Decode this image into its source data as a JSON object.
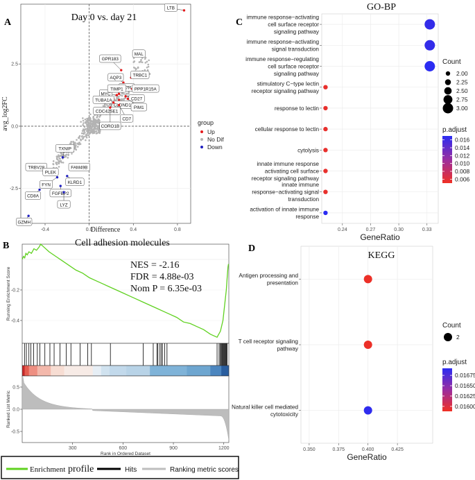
{
  "chart_data": [
    {
      "id": "A",
      "type": "scatter",
      "panel_label": "A",
      "title": "Day 0 vs. day 21",
      "xlabel": "Difference",
      "ylabel": "avg_log2FC",
      "xlim": [
        -0.62,
        0.92
      ],
      "ylim": [
        -3.9,
        4.9
      ],
      "x_ticks": [
        -0.4,
        0.0,
        0.4,
        0.8
      ],
      "x_tick_labels": [
        "-0.4",
        "0.0",
        "0.4",
        "0.8"
      ],
      "y_ticks": [
        -2.5,
        0.0,
        2.5
      ],
      "y_tick_labels": [
        "-2.5",
        "0.0",
        "2.5"
      ],
      "legend": {
        "title": "group",
        "entries": [
          {
            "label": "Up",
            "color": "#e41a1c"
          },
          {
            "label": "No Dif",
            "color": "#b3b3b3"
          },
          {
            "label": "Down",
            "color": "#1f1fbf"
          }
        ]
      },
      "labeled_points": [
        {
          "gene": "LTB",
          "x": 0.86,
          "y": 4.65,
          "group": "Up"
        },
        {
          "gene": "MAL",
          "x": 0.43,
          "y": 2.9,
          "group": "Up"
        },
        {
          "gene": "GPR183",
          "x": 0.29,
          "y": 2.25,
          "group": "Up"
        },
        {
          "gene": "AQP3",
          "x": 0.31,
          "y": 1.75,
          "group": "Up"
        },
        {
          "gene": "TRBC1",
          "x": 0.38,
          "y": 1.95,
          "group": "Up"
        },
        {
          "gene": "IL7R",
          "x": 0.34,
          "y": 1.6,
          "group": "Up"
        },
        {
          "gene": "PPP1R15A",
          "x": 0.39,
          "y": 1.5,
          "group": "Up"
        },
        {
          "gene": "MYC",
          "x": 0.25,
          "y": 1.25,
          "group": "Up"
        },
        {
          "gene": "TIMP1",
          "x": 0.27,
          "y": 1.3,
          "group": "Up"
        },
        {
          "gene": "CD27",
          "x": 0.33,
          "y": 1.2,
          "group": "Up"
        },
        {
          "gene": "TUBA1A",
          "x": 0.22,
          "y": 1.1,
          "group": "Up"
        },
        {
          "gene": "CLDND1",
          "x": 0.27,
          "y": 1.05,
          "group": "Up"
        },
        {
          "gene": "PIM1",
          "x": 0.35,
          "y": 1.1,
          "group": "Up"
        },
        {
          "gene": "CDC42SE1",
          "x": 0.22,
          "y": 0.95,
          "group": "Up"
        },
        {
          "gene": "CD7",
          "x": 0.27,
          "y": 0.85,
          "group": "Up"
        },
        {
          "gene": "CORO1B",
          "x": 0.19,
          "y": 0.75,
          "group": "Up"
        },
        {
          "gene": "TXNIP",
          "x": -0.24,
          "y": -1.25,
          "group": "Down"
        },
        {
          "gene": "TRBV28",
          "x": -0.34,
          "y": -1.75,
          "group": "Down"
        },
        {
          "gene": "PLEK",
          "x": -0.32,
          "y": -1.8,
          "group": "Down"
        },
        {
          "gene": "FAM49B",
          "x": -0.16,
          "y": -1.7,
          "group": "Down"
        },
        {
          "gene": "FYN",
          "x": -0.29,
          "y": -2.05,
          "group": "Down"
        },
        {
          "gene": "KLRD1",
          "x": -0.2,
          "y": -2.0,
          "group": "Down"
        },
        {
          "gene": "FGFBP2",
          "x": -0.26,
          "y": -2.4,
          "group": "Down"
        },
        {
          "gene": "CD8A",
          "x": -0.45,
          "y": -2.55,
          "group": "Down"
        },
        {
          "gene": "LYZ",
          "x": -0.23,
          "y": -2.65,
          "group": "Down"
        },
        {
          "gene": "GZMH",
          "x": -0.55,
          "y": -3.6,
          "group": "Down"
        }
      ]
    },
    {
      "id": "B",
      "type": "line",
      "panel_label": "B",
      "title": "Cell adhesion molecules",
      "ylabel": "Running Enrichment Score",
      "xlabel": "Rank in Ordered Dataset",
      "stats": [
        "NES = -2.16",
        "FDR = 4.88e-03",
        "Nom P = 6.35e-03"
      ],
      "y_ticks": [
        -0.2,
        -0.4
      ],
      "y_tick_labels": [
        "-0.2",
        "-0.4"
      ],
      "x_ticks": [
        300,
        600,
        900,
        1200
      ],
      "x_tick_labels": [
        "300",
        "600",
        "900",
        "1200"
      ],
      "xlim": [
        0,
        1230
      ],
      "ylim": [
        -0.55,
        0.1
      ],
      "running_score": {
        "x": [
          0,
          8,
          15,
          22,
          30,
          40,
          55,
          70,
          85,
          100,
          110,
          120,
          160,
          200,
          240,
          280,
          320,
          360,
          400,
          440,
          480,
          520,
          560,
          600,
          640,
          680,
          720,
          760,
          800,
          840,
          880,
          920,
          960,
          1000,
          1040,
          1080,
          1120,
          1160,
          1180,
          1195,
          1200,
          1205,
          1210,
          1215,
          1220,
          1225,
          1228
        ],
        "y": [
          0.0,
          0.02,
          0.01,
          0.04,
          0.03,
          0.05,
          0.04,
          0.07,
          0.06,
          0.08,
          0.1,
          0.09,
          0.05,
          0.02,
          -0.01,
          -0.04,
          -0.07,
          -0.09,
          -0.12,
          -0.14,
          -0.16,
          -0.18,
          -0.2,
          -0.22,
          -0.24,
          -0.26,
          -0.28,
          -0.3,
          -0.32,
          -0.34,
          -0.36,
          -0.38,
          -0.41,
          -0.42,
          -0.44,
          -0.46,
          -0.49,
          -0.51,
          -0.47,
          -0.4,
          -0.35,
          -0.3,
          -0.25,
          -0.2,
          -0.12,
          -0.05,
          -0.03
        ]
      },
      "hits": [
        15,
        25,
        40,
        52,
        68,
        90,
        105,
        135,
        165,
        190,
        225,
        262,
        290,
        345,
        390,
        412,
        525,
        720,
        780,
        802,
        808,
        820,
        828,
        835,
        848,
        862,
        1160,
        1172,
        1178,
        1184,
        1188,
        1192,
        1196,
        1200,
        1204,
        1208,
        1212,
        1216,
        1220
      ],
      "metric_y_ticks": [
        0.5,
        0.0,
        -0.5
      ],
      "metric_y_tick_labels": [
        "0.5",
        "0.0",
        "-0.5"
      ],
      "metric_ylabel": "Ranked List Metric",
      "legend": [
        {
          "label": "Enrichment",
          "label2": "profile",
          "color": "#5fd11f"
        },
        {
          "label": "Hits",
          "color": "#000000"
        },
        {
          "label": "Ranking metric scores",
          "color": "#bdbdbd"
        }
      ]
    },
    {
      "id": "C",
      "type": "scatter",
      "panel_label": "C",
      "title": "GO-BP",
      "xlabel": "GeneRatio",
      "x_ticks": [
        0.24,
        0.27,
        0.3,
        0.33
      ],
      "x_tick_labels": [
        "0.24",
        "0.27",
        "0.30",
        "0.33"
      ],
      "xlim": [
        0.218,
        0.342
      ],
      "terms": [
        {
          "lines": [
            "immune response−activating",
            "cell surface receptor",
            "signaling pathway"
          ],
          "x": 0.333,
          "count": 3,
          "padj": 0.0165
        },
        {
          "lines": [
            "immune response−activating",
            "signal transduction"
          ],
          "x": 0.333,
          "count": 3,
          "padj": 0.0165
        },
        {
          "lines": [
            "immune response−regulating",
            "cell surface receptor",
            "signaling pathway"
          ],
          "x": 0.333,
          "count": 3,
          "padj": 0.017
        },
        {
          "lines": [
            "stimulatory C−type lectin",
            "receptor signaling pathway"
          ],
          "x": 0.222,
          "count": 2,
          "padj": 0.0055
        },
        {
          "lines": [
            "response to lectin"
          ],
          "x": 0.222,
          "count": 2,
          "padj": 0.0055
        },
        {
          "lines": [
            "cellular response to lectin"
          ],
          "x": 0.222,
          "count": 2,
          "padj": 0.0055
        },
        {
          "lines": [
            "cytolysis"
          ],
          "x": 0.222,
          "count": 2,
          "padj": 0.0055
        },
        {
          "lines": [
            "innate immune response",
            "activating cell surface",
            "receptor signaling pathway"
          ],
          "x": 0.222,
          "count": 2,
          "padj": 0.0055
        },
        {
          "lines": [
            "innate immune",
            "response−activating signal",
            "transduction"
          ],
          "x": 0.222,
          "count": 2,
          "padj": 0.0055
        },
        {
          "lines": [
            "activation of innate immune",
            "response"
          ],
          "x": 0.222,
          "count": 2,
          "padj": 0.017
        }
      ],
      "count_legend": {
        "title": "Count",
        "values": [
          2.0,
          2.25,
          2.5,
          2.75,
          3.0
        ],
        "labels": [
          "2.00",
          "2.25",
          "2.50",
          "2.75",
          "3.00"
        ]
      },
      "padj_legend": {
        "title": "p.adjust",
        "range": [
          0.005,
          0.017
        ],
        "ticks": [
          0.016,
          0.014,
          0.012,
          0.01,
          0.008,
          0.006
        ],
        "labels": [
          "0.016",
          "0.014",
          "0.012",
          "0.010",
          "0.008",
          "0.006"
        ]
      }
    },
    {
      "id": "D",
      "type": "scatter",
      "panel_label": "D",
      "title": "KEGG",
      "xlabel": "GeneRatio",
      "x_ticks": [
        0.35,
        0.375,
        0.4,
        0.425
      ],
      "x_tick_labels": [
        "0.350",
        "0.375",
        "0.400",
        "0.425"
      ],
      "xlim": [
        0.343,
        0.455
      ],
      "terms": [
        {
          "lines": [
            "Antigen processing and",
            "presentation"
          ],
          "x": 0.4,
          "count": 2,
          "padj": 0.0159
        },
        {
          "lines": [
            "T cell receptor signaling",
            "pathway"
          ],
          "x": 0.4,
          "count": 2,
          "padj": 0.0159
        },
        {
          "lines": [
            "Natural killer cell mediated",
            "cytotoxicity"
          ],
          "x": 0.4,
          "count": 2,
          "padj": 0.0169
        }
      ],
      "count_legend": {
        "title": "Count",
        "values": [
          2
        ],
        "labels": [
          "2"
        ]
      },
      "padj_legend": {
        "title": "p.adjust",
        "range": [
          0.01588,
          0.01692
        ],
        "ticks": [
          0.01675,
          0.0165,
          0.01625,
          0.016
        ],
        "labels": [
          "0.01675",
          "0.01650",
          "0.01625",
          "0.01600"
        ]
      }
    }
  ]
}
